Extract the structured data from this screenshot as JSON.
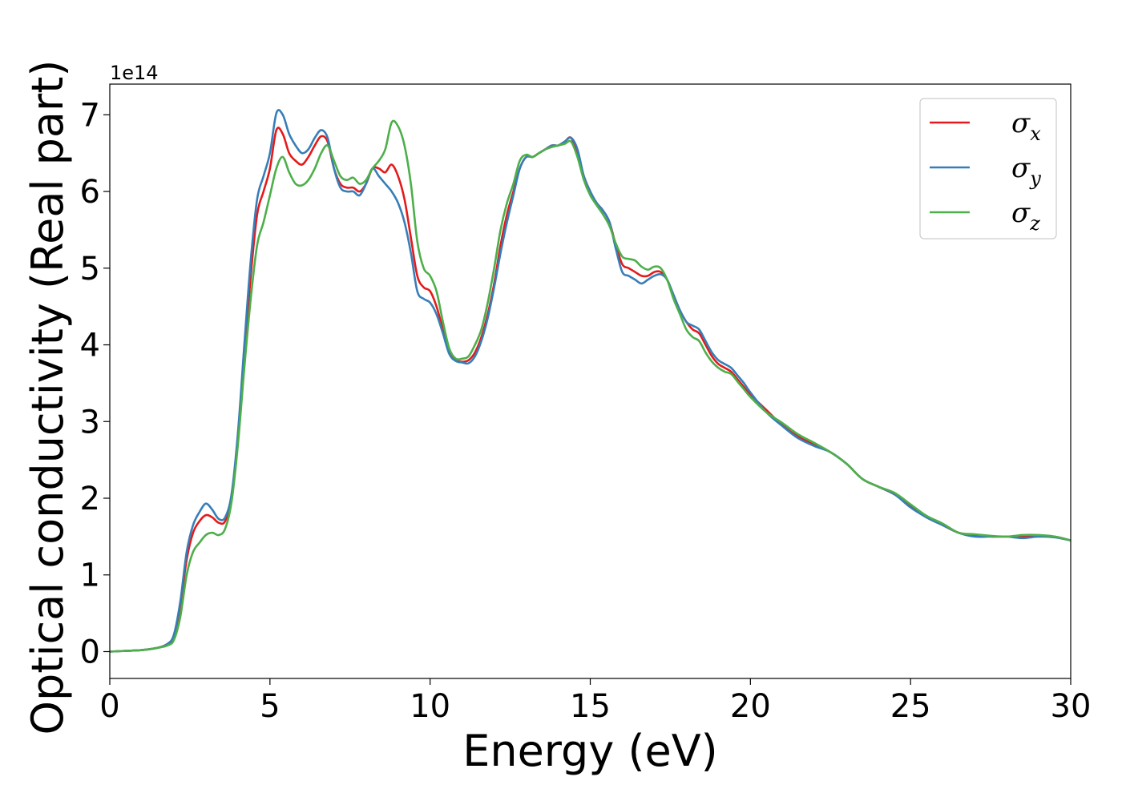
{
  "chart_data": {
    "type": "line",
    "xlabel": "Energy (eV)",
    "ylabel": "Optical conductivity (Real part)",
    "y_offset_label": "1e14",
    "y_scale_factor": 100000000000000.0,
    "xlim": [
      0,
      30
    ],
    "ylim": [
      -0.35,
      7.4
    ],
    "x_ticks": [
      0,
      5,
      10,
      15,
      20,
      25,
      30
    ],
    "y_ticks": [
      0,
      1,
      2,
      3,
      4,
      5,
      6,
      7
    ],
    "grid": false,
    "legend_position": "top-right",
    "series": [
      {
        "name": "σx",
        "label_base": "σ",
        "label_sub": "x",
        "color": "#e41a1c",
        "x": [
          0,
          0.5,
          1,
          1.5,
          1.8,
          2.0,
          2.2,
          2.4,
          2.6,
          2.8,
          3.0,
          3.2,
          3.4,
          3.6,
          3.8,
          4.0,
          4.2,
          4.4,
          4.6,
          4.8,
          5.0,
          5.2,
          5.4,
          5.6,
          5.8,
          6.0,
          6.2,
          6.4,
          6.6,
          6.8,
          7.0,
          7.2,
          7.4,
          7.6,
          7.8,
          8.0,
          8.2,
          8.4,
          8.6,
          8.8,
          9.0,
          9.2,
          9.4,
          9.6,
          9.8,
          10.0,
          10.2,
          10.4,
          10.6,
          10.8,
          11.0,
          11.2,
          11.4,
          11.6,
          11.8,
          12.0,
          12.2,
          12.4,
          12.6,
          12.8,
          13.0,
          13.2,
          13.4,
          13.6,
          13.8,
          14.0,
          14.2,
          14.4,
          14.6,
          14.8,
          15.0,
          15.2,
          15.4,
          15.6,
          15.8,
          16.0,
          16.2,
          16.4,
          16.6,
          16.8,
          17.0,
          17.2,
          17.4,
          17.6,
          17.8,
          18.0,
          18.2,
          18.4,
          18.6,
          18.8,
          19.0,
          19.2,
          19.4,
          19.6,
          19.8,
          20.0,
          20.5,
          21.0,
          21.5,
          22.0,
          22.5,
          23.0,
          23.5,
          24.0,
          24.5,
          25.0,
          25.5,
          26.0,
          26.5,
          27.0,
          27.5,
          28.0,
          28.5,
          29.0,
          29.5,
          30.0
        ],
        "y": [
          0,
          0.01,
          0.02,
          0.05,
          0.1,
          0.2,
          0.6,
          1.2,
          1.55,
          1.7,
          1.78,
          1.75,
          1.68,
          1.7,
          2.0,
          2.8,
          3.9,
          4.9,
          5.7,
          6.0,
          6.3,
          6.8,
          6.75,
          6.5,
          6.4,
          6.35,
          6.45,
          6.6,
          6.72,
          6.65,
          6.3,
          6.1,
          6.05,
          6.05,
          6.0,
          6.1,
          6.3,
          6.3,
          6.25,
          6.35,
          6.2,
          5.9,
          5.4,
          4.9,
          4.75,
          4.7,
          4.5,
          4.2,
          3.9,
          3.8,
          3.78,
          3.8,
          3.9,
          4.1,
          4.4,
          4.8,
          5.3,
          5.7,
          6.0,
          6.3,
          6.45,
          6.45,
          6.5,
          6.55,
          6.6,
          6.6,
          6.65,
          6.7,
          6.5,
          6.2,
          6.0,
          5.85,
          5.75,
          5.6,
          5.3,
          5.05,
          5.0,
          4.95,
          4.9,
          4.9,
          4.95,
          4.95,
          4.85,
          4.65,
          4.45,
          4.3,
          4.2,
          4.15,
          4.0,
          3.85,
          3.75,
          3.7,
          3.65,
          3.55,
          3.45,
          3.35,
          3.15,
          2.95,
          2.8,
          2.7,
          2.6,
          2.45,
          2.25,
          2.15,
          2.05,
          1.9,
          1.75,
          1.65,
          1.55,
          1.52,
          1.5,
          1.5,
          1.5,
          1.5,
          1.5,
          1.45
        ]
      },
      {
        "name": "σy",
        "label_base": "σ",
        "label_sub": "y",
        "color": "#377eb8",
        "x": [
          0,
          0.5,
          1,
          1.5,
          1.8,
          2.0,
          2.2,
          2.4,
          2.6,
          2.8,
          3.0,
          3.2,
          3.4,
          3.6,
          3.8,
          4.0,
          4.2,
          4.4,
          4.6,
          4.8,
          5.0,
          5.2,
          5.4,
          5.6,
          5.8,
          6.0,
          6.2,
          6.4,
          6.6,
          6.8,
          7.0,
          7.2,
          7.4,
          7.6,
          7.8,
          8.0,
          8.2,
          8.4,
          8.6,
          8.8,
          9.0,
          9.2,
          9.4,
          9.6,
          9.8,
          10.0,
          10.2,
          10.4,
          10.6,
          10.8,
          11.0,
          11.2,
          11.4,
          11.6,
          11.8,
          12.0,
          12.2,
          12.4,
          12.6,
          12.8,
          13.0,
          13.2,
          13.4,
          13.6,
          13.8,
          14.0,
          14.2,
          14.4,
          14.6,
          14.8,
          15.0,
          15.2,
          15.4,
          15.6,
          15.8,
          16.0,
          16.2,
          16.4,
          16.6,
          16.8,
          17.0,
          17.2,
          17.4,
          17.6,
          17.8,
          18.0,
          18.2,
          18.4,
          18.6,
          18.8,
          19.0,
          19.2,
          19.4,
          19.6,
          19.8,
          20.0,
          20.5,
          21.0,
          21.5,
          22.0,
          22.5,
          23.0,
          23.5,
          24.0,
          24.5,
          25.0,
          25.5,
          26.0,
          26.5,
          27.0,
          27.5,
          28.0,
          28.5,
          29.0,
          29.5,
          30.0
        ],
        "y": [
          0,
          0.01,
          0.02,
          0.05,
          0.1,
          0.22,
          0.65,
          1.3,
          1.65,
          1.82,
          1.93,
          1.85,
          1.73,
          1.75,
          2.05,
          2.85,
          4.0,
          5.1,
          5.9,
          6.2,
          6.5,
          7.02,
          7.0,
          6.75,
          6.6,
          6.5,
          6.55,
          6.7,
          6.8,
          6.7,
          6.3,
          6.05,
          6.0,
          6.0,
          5.95,
          6.1,
          6.3,
          6.2,
          6.1,
          6.0,
          5.85,
          5.6,
          5.2,
          4.7,
          4.6,
          4.55,
          4.4,
          4.15,
          3.88,
          3.79,
          3.77,
          3.76,
          3.85,
          4.05,
          4.35,
          4.75,
          5.2,
          5.6,
          5.95,
          6.3,
          6.45,
          6.45,
          6.5,
          6.55,
          6.6,
          6.6,
          6.65,
          6.7,
          6.55,
          6.2,
          6.0,
          5.85,
          5.75,
          5.6,
          5.25,
          4.95,
          4.9,
          4.85,
          4.8,
          4.85,
          4.9,
          4.92,
          4.85,
          4.65,
          4.45,
          4.3,
          4.25,
          4.2,
          4.05,
          3.9,
          3.8,
          3.75,
          3.7,
          3.6,
          3.5,
          3.38,
          3.12,
          2.94,
          2.78,
          2.68,
          2.6,
          2.45,
          2.25,
          2.15,
          2.05,
          1.88,
          1.75,
          1.65,
          1.55,
          1.5,
          1.5,
          1.5,
          1.48,
          1.5,
          1.49,
          1.45
        ]
      },
      {
        "name": "σz",
        "label_base": "σ",
        "label_sub": "z",
        "color": "#4daf4a",
        "x": [
          0,
          0.5,
          1,
          1.5,
          1.8,
          2.0,
          2.2,
          2.4,
          2.6,
          2.8,
          3.0,
          3.2,
          3.4,
          3.6,
          3.8,
          4.0,
          4.2,
          4.4,
          4.6,
          4.8,
          5.0,
          5.2,
          5.4,
          5.6,
          5.8,
          6.0,
          6.2,
          6.4,
          6.6,
          6.8,
          7.0,
          7.2,
          7.4,
          7.6,
          7.8,
          8.0,
          8.2,
          8.4,
          8.6,
          8.8,
          9.0,
          9.2,
          9.4,
          9.6,
          9.8,
          10.0,
          10.2,
          10.4,
          10.6,
          10.8,
          11.0,
          11.2,
          11.4,
          11.6,
          11.8,
          12.0,
          12.2,
          12.4,
          12.6,
          12.8,
          13.0,
          13.2,
          13.4,
          13.6,
          13.8,
          14.0,
          14.2,
          14.4,
          14.6,
          14.8,
          15.0,
          15.2,
          15.4,
          15.6,
          15.8,
          16.0,
          16.2,
          16.4,
          16.6,
          16.8,
          17.0,
          17.2,
          17.4,
          17.6,
          17.8,
          18.0,
          18.2,
          18.4,
          18.6,
          18.8,
          19.0,
          19.2,
          19.4,
          19.6,
          19.8,
          20.0,
          20.5,
          21.0,
          21.5,
          22.0,
          22.5,
          23.0,
          23.5,
          24.0,
          24.5,
          25.0,
          25.5,
          26.0,
          26.5,
          27.0,
          27.5,
          28.0,
          28.5,
          29.0,
          29.5,
          30.0
        ],
        "y": [
          0,
          0.01,
          0.02,
          0.05,
          0.08,
          0.15,
          0.45,
          1.0,
          1.3,
          1.42,
          1.52,
          1.55,
          1.52,
          1.6,
          1.95,
          2.7,
          3.7,
          4.6,
          5.3,
          5.6,
          5.95,
          6.3,
          6.45,
          6.25,
          6.1,
          6.08,
          6.15,
          6.3,
          6.5,
          6.6,
          6.4,
          6.2,
          6.15,
          6.18,
          6.1,
          6.15,
          6.3,
          6.4,
          6.55,
          6.9,
          6.85,
          6.6,
          6.1,
          5.35,
          5.0,
          4.9,
          4.7,
          4.3,
          3.95,
          3.82,
          3.82,
          3.85,
          4.0,
          4.2,
          4.55,
          5.0,
          5.5,
          5.85,
          6.1,
          6.4,
          6.48,
          6.45,
          6.5,
          6.55,
          6.58,
          6.6,
          6.62,
          6.65,
          6.45,
          6.15,
          5.95,
          5.82,
          5.7,
          5.55,
          5.32,
          5.15,
          5.12,
          5.1,
          5.02,
          4.98,
          5.02,
          5.0,
          4.85,
          4.6,
          4.4,
          4.2,
          4.1,
          4.05,
          3.9,
          3.78,
          3.7,
          3.65,
          3.62,
          3.52,
          3.42,
          3.32,
          3.12,
          2.98,
          2.83,
          2.72,
          2.6,
          2.45,
          2.25,
          2.15,
          2.07,
          1.92,
          1.77,
          1.67,
          1.55,
          1.53,
          1.51,
          1.5,
          1.52,
          1.52,
          1.5,
          1.45
        ]
      }
    ]
  }
}
